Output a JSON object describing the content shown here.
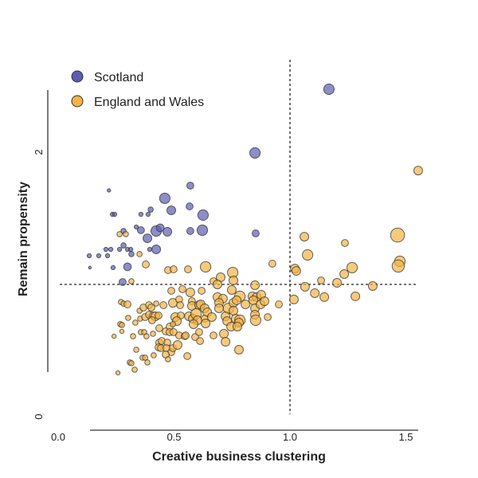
{
  "chart_data": {
    "type": "scatter",
    "title": "",
    "xlabel": "Creative business clustering",
    "ylabel": "Remain propensity",
    "xlim": [
      0,
      1.55
    ],
    "ylim": [
      0,
      2.5
    ],
    "x_ticks": [
      "0.0",
      "0.5",
      "1.0",
      "1.5"
    ],
    "x_tick_values": [
      0,
      0.5,
      1.0,
      1.5
    ],
    "y_ticks": [
      "0",
      "2"
    ],
    "y_tick_values": [
      0,
      2
    ],
    "reference_lines": {
      "x": 1.0,
      "y": 1.0,
      "style": "dashed"
    },
    "grid": false,
    "legend_position": "top-left",
    "marker_size_note": "",
    "series": [
      {
        "name": "Scotland",
        "color": "#5c5cb0",
        "points": [
          [
            1.168,
            2.476,
            3
          ],
          [
            0.849,
            1.994,
            3
          ],
          [
            0.852,
            1.386,
            2
          ],
          [
            0.219,
            1.711,
            1
          ],
          [
            0.57,
            1.747,
            2
          ],
          [
            0.46,
            1.651,
            3
          ],
          [
            0.488,
            1.56,
            2.5
          ],
          [
            0.567,
            1.59,
            2
          ],
          [
            0.625,
            1.524,
            3
          ],
          [
            0.399,
            1.566,
            1.5
          ],
          [
            0.357,
            1.53,
            1.2
          ],
          [
            0.388,
            1.53,
            1.2
          ],
          [
            0.234,
            1.53,
            1.2
          ],
          [
            0.244,
            1.53,
            1.2
          ],
          [
            0.337,
            1.434,
            1.2
          ],
          [
            0.357,
            1.41,
            2
          ],
          [
            0.282,
            1.404,
            1.5
          ],
          [
            0.423,
            1.404,
            3
          ],
          [
            0.44,
            1.428,
            2.2
          ],
          [
            0.471,
            1.398,
            2.5
          ],
          [
            0.57,
            1.404,
            2
          ],
          [
            0.622,
            1.41,
            3
          ],
          [
            0.385,
            1.349,
            2.5
          ],
          [
            0.282,
            1.295,
            1.5
          ],
          [
            0.206,
            1.265,
            1.2
          ],
          [
            0.227,
            1.265,
            1.2
          ],
          [
            0.265,
            1.265,
            1.2
          ],
          [
            0.299,
            1.265,
            1.2
          ],
          [
            0.313,
            1.265,
            1.2
          ],
          [
            0.316,
            1.229,
            1.5
          ],
          [
            0.395,
            1.265,
            1.2
          ],
          [
            0.423,
            1.265,
            2.5
          ],
          [
            0.134,
            1.217,
            1.2
          ],
          [
            0.175,
            1.217,
            1.2
          ],
          [
            0.213,
            1.217,
            1.2
          ],
          [
            0.137,
            1.127,
            0.8
          ],
          [
            0.237,
            1.127,
            1.2
          ],
          [
            0.299,
            1.133,
            2.2
          ],
          [
            0.278,
            1.018,
            2
          ]
        ]
      },
      {
        "name": "England and Wales",
        "color": "#f2b445",
        "points": [
          [
            0.265,
            1.38,
            1.5
          ],
          [
            0.292,
            1.38,
            1.5
          ],
          [
            0.351,
            1.229,
            1.5
          ],
          [
            0.378,
            1.151,
            2
          ],
          [
            0.474,
            1.108,
            2
          ],
          [
            0.498,
            1.114,
            2
          ],
          [
            0.56,
            1.114,
            2
          ],
          [
            0.636,
            1.133,
            3
          ],
          [
            0.701,
            1.054,
            2.5
          ],
          [
            0.753,
            1.09,
            3
          ],
          [
            0.756,
            1.03,
            2.5
          ],
          [
            0.67,
            1.024,
            2
          ],
          [
            0.687,
            1.0,
            2.5
          ],
          [
            0.316,
            1.024,
            1.5
          ],
          [
            0.488,
            0.952,
            2
          ],
          [
            0.536,
            0.964,
            2
          ],
          [
            0.57,
            0.94,
            2.5
          ],
          [
            0.619,
            0.952,
            2
          ],
          [
            0.749,
            0.958,
            2.5
          ],
          [
            1.062,
            1.361,
            2.5
          ],
          [
            1.237,
            1.313,
            2
          ],
          [
            1.464,
            1.373,
            4
          ],
          [
            1.076,
            1.223,
            3
          ],
          [
            0.924,
            1.157,
            2
          ],
          [
            1.021,
            1.12,
            2.5
          ],
          [
            1.027,
            1.102,
            2.5
          ],
          [
            1.268,
            1.127,
            3
          ],
          [
            1.474,
            1.175,
            3
          ],
          [
            1.467,
            1.139,
            3.5
          ],
          [
            1.234,
            1.078,
            2.5
          ],
          [
            1.134,
            1.03,
            2
          ],
          [
            1.203,
            1.012,
            2.5
          ],
          [
            1.065,
            0.982,
            2.5
          ],
          [
            1.357,
            0.988,
            2.5
          ],
          [
            1.107,
            0.934,
            2.5
          ],
          [
            1.148,
            0.904,
            2.5
          ],
          [
            1.282,
            0.91,
            2.5
          ],
          [
            1.017,
            0.886,
            2.5
          ],
          [
            0.952,
            0.849,
            2
          ],
          [
            0.904,
            0.753,
            2
          ],
          [
            0.849,
            0.994,
            2.5
          ],
          [
            0.784,
            0.91,
            3
          ],
          [
            0.687,
            0.904,
            2.5
          ],
          [
            0.711,
            0.892,
            2.5
          ],
          [
            0.838,
            0.91,
            2.5
          ],
          [
            0.856,
            0.904,
            2.5
          ],
          [
            0.876,
            0.922,
            2.5
          ],
          [
            0.271,
            0.867,
            1.5
          ],
          [
            0.282,
            0.855,
            1.5
          ],
          [
            0.299,
            0.849,
            2
          ],
          [
            0.351,
            0.801,
            1.5
          ],
          [
            0.368,
            0.825,
            2
          ],
          [
            0.392,
            0.843,
            2
          ],
          [
            0.402,
            0.825,
            2
          ],
          [
            0.423,
            0.855,
            1.5
          ],
          [
            0.454,
            0.843,
            2
          ],
          [
            0.495,
            0.861,
            2.5
          ],
          [
            0.522,
            0.886,
            2
          ],
          [
            0.526,
            0.843,
            2
          ],
          [
            0.577,
            0.873,
            2
          ],
          [
            0.577,
            0.837,
            2.5
          ],
          [
            0.608,
            0.843,
            2.5
          ],
          [
            0.615,
            0.849,
            2.5
          ],
          [
            0.632,
            0.819,
            2.5
          ],
          [
            0.643,
            0.789,
            2.5
          ],
          [
            0.694,
            0.861,
            2.5
          ],
          [
            0.694,
            0.819,
            2.5
          ],
          [
            0.735,
            0.819,
            3
          ],
          [
            0.756,
            0.861,
            2.5
          ],
          [
            0.77,
            0.88,
            2.5
          ],
          [
            0.808,
            0.849,
            2.5
          ],
          [
            0.842,
            0.88,
            2.5
          ],
          [
            0.849,
            0.819,
            2.5
          ],
          [
            0.873,
            0.849,
            2.5
          ],
          [
            0.89,
            0.873,
            2.5
          ],
          [
            0.302,
            0.747,
            1.5
          ],
          [
            0.333,
            0.711,
            1.5
          ],
          [
            0.354,
            0.741,
            1.5
          ],
          [
            0.375,
            0.753,
            2
          ],
          [
            0.392,
            0.771,
            2
          ],
          [
            0.409,
            0.765,
            2
          ],
          [
            0.419,
            0.759,
            2.5
          ],
          [
            0.433,
            0.765,
            2
          ],
          [
            0.405,
            0.729,
            2
          ],
          [
            0.505,
            0.753,
            2.5
          ],
          [
            0.529,
            0.765,
            2
          ],
          [
            0.512,
            0.723,
            2.5
          ],
          [
            0.564,
            0.759,
            2.5
          ],
          [
            0.581,
            0.741,
            2.5
          ],
          [
            0.595,
            0.777,
            3
          ],
          [
            0.601,
            0.729,
            2.5
          ],
          [
            0.584,
            0.699,
            2.5
          ],
          [
            0.632,
            0.741,
            2
          ],
          [
            0.636,
            0.705,
            2.5
          ],
          [
            0.663,
            0.753,
            2.5
          ],
          [
            0.722,
            0.759,
            2.5
          ],
          [
            0.729,
            0.723,
            2.5
          ],
          [
            0.756,
            0.801,
            2.5
          ],
          [
            0.766,
            0.741,
            2.5
          ],
          [
            0.784,
            0.729,
            3
          ],
          [
            0.78,
            0.711,
            2.5
          ],
          [
            0.746,
            0.681,
            2.5
          ],
          [
            0.773,
            0.681,
            2.5
          ],
          [
            0.849,
            0.771,
            2.5
          ],
          [
            0.852,
            0.729,
            3
          ],
          [
            0.268,
            0.699,
            1.5
          ],
          [
            0.275,
            0.693,
            1.5
          ],
          [
            0.275,
            0.645,
            1.2
          ],
          [
            0.241,
            0.608,
            1.2
          ],
          [
            0.323,
            0.608,
            1.5
          ],
          [
            0.357,
            0.639,
            1.5
          ],
          [
            0.371,
            0.639,
            1.5
          ],
          [
            0.381,
            0.608,
            1.5
          ],
          [
            0.409,
            0.627,
            1.5
          ],
          [
            0.436,
            0.669,
            2
          ],
          [
            0.464,
            0.645,
            2
          ],
          [
            0.481,
            0.681,
            2
          ],
          [
            0.495,
            0.699,
            1.5
          ],
          [
            0.481,
            0.639,
            2
          ],
          [
            0.498,
            0.639,
            2
          ],
          [
            0.522,
            0.614,
            2
          ],
          [
            0.546,
            0.608,
            2
          ],
          [
            0.55,
            0.614,
            2
          ],
          [
            0.591,
            0.602,
            2
          ],
          [
            0.608,
            0.639,
            2
          ],
          [
            0.612,
            0.572,
            2
          ],
          [
            0.67,
            0.614,
            2
          ],
          [
            0.715,
            0.627,
            2.5
          ],
          [
            0.722,
            0.566,
            2.5
          ],
          [
            0.78,
            0.506,
            2.5
          ],
          [
            0.337,
            0.506,
            1.5
          ],
          [
            0.436,
            0.56,
            2
          ],
          [
            0.447,
            0.572,
            2
          ],
          [
            0.433,
            0.524,
            2
          ],
          [
            0.443,
            0.518,
            2
          ],
          [
            0.471,
            0.56,
            2
          ],
          [
            0.467,
            0.518,
            2
          ],
          [
            0.488,
            0.488,
            2
          ],
          [
            0.495,
            0.518,
            2
          ],
          [
            0.515,
            0.542,
            2.5
          ],
          [
            0.557,
            0.458,
            2
          ],
          [
            0.464,
            0.47,
            2
          ],
          [
            0.474,
            0.434,
            1.5
          ],
          [
            0.412,
            0.464,
            1.5
          ],
          [
            0.364,
            0.446,
            1.5
          ],
          [
            0.375,
            0.446,
            1.5
          ],
          [
            0.385,
            0.41,
            1.5
          ],
          [
            0.309,
            0.41,
            1.5
          ],
          [
            0.316,
            0.404,
            1.5
          ],
          [
            0.33,
            0.355,
            1.5
          ],
          [
            0.258,
            0.331,
            1.2
          ],
          [
            1.553,
            1.861,
            2.5
          ]
        ]
      }
    ]
  }
}
